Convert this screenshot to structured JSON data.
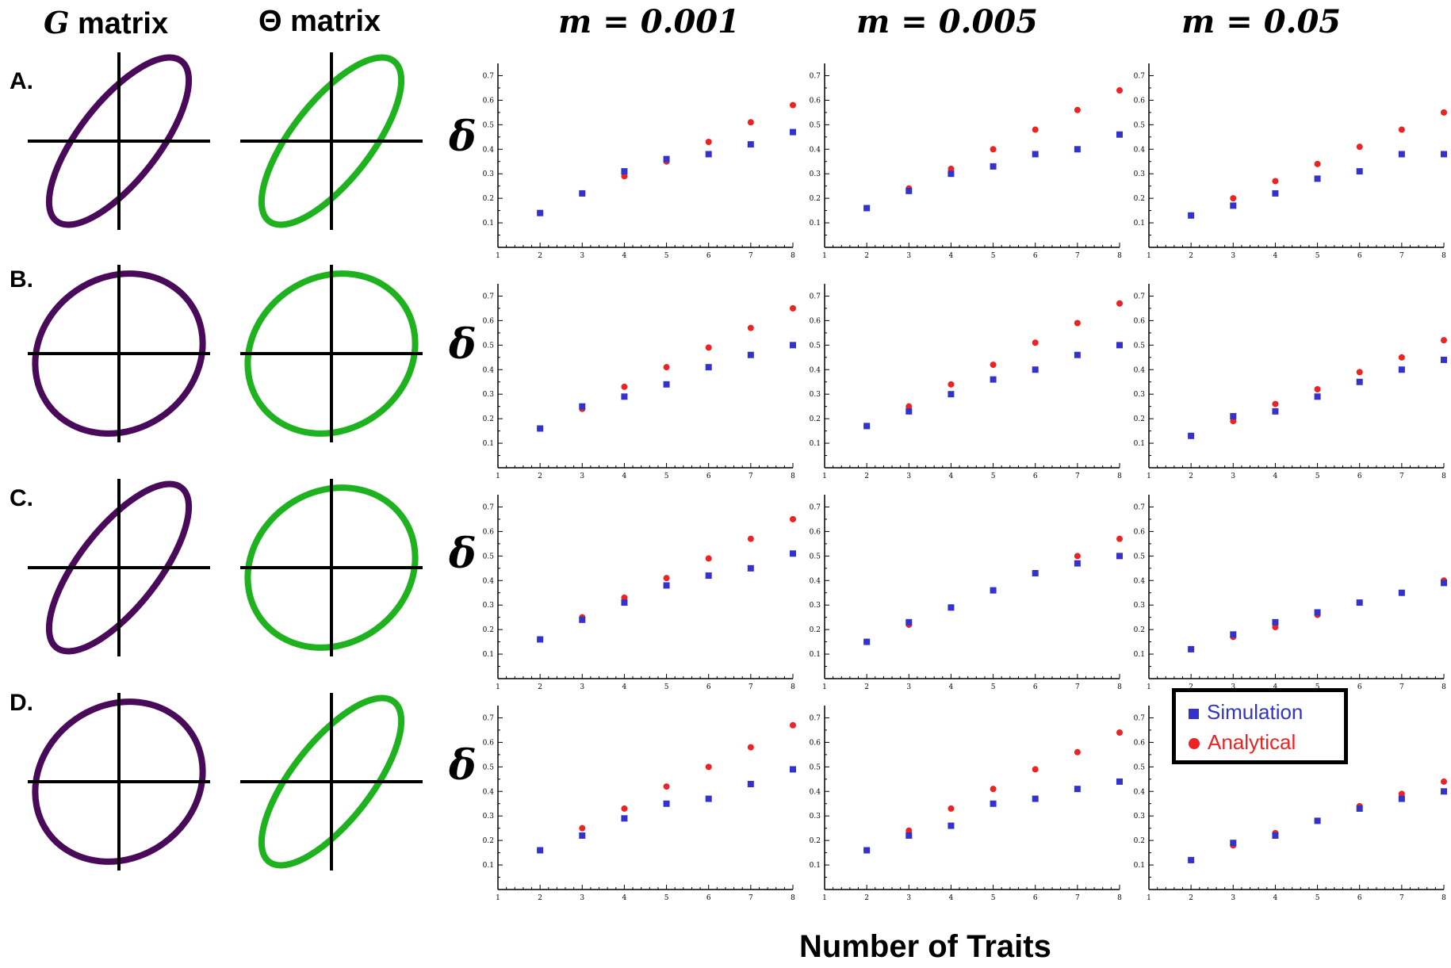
{
  "column_headers": {
    "g_matrix": {
      "symbol": "G",
      "text": "matrix"
    },
    "theta_matrix": {
      "symbol": "Θ",
      "text": "matrix"
    },
    "m_values": [
      "m = 0.001",
      "m = 0.005",
      "m = 0.05"
    ]
  },
  "row_labels": [
    "A.",
    "B.",
    "C.",
    "D."
  ],
  "y_label": "δ",
  "x_label": "Number of Traits",
  "legend": {
    "simulation": "Simulation",
    "analytical": "Analytical"
  },
  "colors": {
    "g_ellipse": "#4a0a5a",
    "theta_ellipse": "#1fb21f",
    "simulation": "#3333cc",
    "analytical": "#ee2222"
  },
  "ellipses": {
    "A": {
      "g": "tilted",
      "theta": "tilted"
    },
    "B": {
      "g": "round",
      "theta": "round"
    },
    "C": {
      "g": "tilted",
      "theta": "round"
    },
    "D": {
      "g": "round",
      "theta": "tilted"
    }
  },
  "chart_data": [
    {
      "row": "A",
      "m": "0.001",
      "type": "scatter",
      "x": [
        2,
        3,
        4,
        5,
        6,
        7,
        8
      ],
      "xlim": [
        1,
        8
      ],
      "ylim": [
        0,
        0.75
      ],
      "yticks": [
        0.1,
        0.2,
        0.3,
        0.4,
        0.5,
        0.6,
        0.7
      ],
      "series": [
        {
          "name": "Simulation",
          "values": [
            0.14,
            0.22,
            0.31,
            0.36,
            0.38,
            0.42,
            0.47
          ]
        },
        {
          "name": "Analytical",
          "values": [
            0.14,
            0.22,
            0.29,
            0.35,
            0.43,
            0.51,
            0.58
          ]
        }
      ]
    },
    {
      "row": "A",
      "m": "0.005",
      "type": "scatter",
      "x": [
        2,
        3,
        4,
        5,
        6,
        7,
        8
      ],
      "xlim": [
        1,
        8
      ],
      "ylim": [
        0,
        0.75
      ],
      "yticks": [
        0.1,
        0.2,
        0.3,
        0.4,
        0.5,
        0.6,
        0.7
      ],
      "series": [
        {
          "name": "Simulation",
          "values": [
            0.16,
            0.23,
            0.3,
            0.33,
            0.38,
            0.4,
            0.46
          ]
        },
        {
          "name": "Analytical",
          "values": [
            0.16,
            0.24,
            0.32,
            0.4,
            0.48,
            0.56,
            0.64
          ]
        }
      ]
    },
    {
      "row": "A",
      "m": "0.05",
      "type": "scatter",
      "x": [
        2,
        3,
        4,
        5,
        6,
        7,
        8
      ],
      "xlim": [
        1,
        8
      ],
      "ylim": [
        0,
        0.75
      ],
      "yticks": [
        0.1,
        0.2,
        0.3,
        0.4,
        0.5,
        0.6,
        0.7
      ],
      "series": [
        {
          "name": "Simulation",
          "values": [
            0.13,
            0.17,
            0.22,
            0.28,
            0.31,
            0.38,
            0.38
          ]
        },
        {
          "name": "Analytical",
          "values": [
            0.13,
            0.2,
            0.27,
            0.34,
            0.41,
            0.48,
            0.55
          ]
        }
      ]
    },
    {
      "row": "B",
      "m": "0.001",
      "type": "scatter",
      "x": [
        2,
        3,
        4,
        5,
        6,
        7,
        8
      ],
      "xlim": [
        1,
        8
      ],
      "ylim": [
        0,
        0.75
      ],
      "yticks": [
        0.1,
        0.2,
        0.3,
        0.4,
        0.5,
        0.6,
        0.7
      ],
      "series": [
        {
          "name": "Simulation",
          "values": [
            0.16,
            0.25,
            0.29,
            0.34,
            0.41,
            0.46,
            0.5
          ]
        },
        {
          "name": "Analytical",
          "values": [
            0.16,
            0.24,
            0.33,
            0.41,
            0.49,
            0.57,
            0.65
          ]
        }
      ]
    },
    {
      "row": "B",
      "m": "0.005",
      "type": "scatter",
      "x": [
        2,
        3,
        4,
        5,
        6,
        7,
        8
      ],
      "xlim": [
        1,
        8
      ],
      "ylim": [
        0,
        0.75
      ],
      "yticks": [
        0.1,
        0.2,
        0.3,
        0.4,
        0.5,
        0.6,
        0.7
      ],
      "series": [
        {
          "name": "Simulation",
          "values": [
            0.17,
            0.23,
            0.3,
            0.36,
            0.4,
            0.46,
            0.5
          ]
        },
        {
          "name": "Analytical",
          "values": [
            0.17,
            0.25,
            0.34,
            0.42,
            0.51,
            0.59,
            0.67
          ]
        }
      ]
    },
    {
      "row": "B",
      "m": "0.05",
      "type": "scatter",
      "x": [
        2,
        3,
        4,
        5,
        6,
        7,
        8
      ],
      "xlim": [
        1,
        8
      ],
      "ylim": [
        0,
        0.75
      ],
      "yticks": [
        0.1,
        0.2,
        0.3,
        0.4,
        0.5,
        0.6,
        0.7
      ],
      "series": [
        {
          "name": "Simulation",
          "values": [
            0.13,
            0.21,
            0.23,
            0.29,
            0.35,
            0.4,
            0.44
          ]
        },
        {
          "name": "Analytical",
          "values": [
            0.13,
            0.19,
            0.26,
            0.32,
            0.39,
            0.45,
            0.52
          ]
        }
      ]
    },
    {
      "row": "C",
      "m": "0.001",
      "type": "scatter",
      "x": [
        2,
        3,
        4,
        5,
        6,
        7,
        8
      ],
      "xlim": [
        1,
        8
      ],
      "ylim": [
        0,
        0.75
      ],
      "yticks": [
        0.1,
        0.2,
        0.3,
        0.4,
        0.5,
        0.6,
        0.7
      ],
      "series": [
        {
          "name": "Simulation",
          "values": [
            0.16,
            0.24,
            0.31,
            0.38,
            0.42,
            0.45,
            0.51
          ]
        },
        {
          "name": "Analytical",
          "values": [
            0.16,
            0.25,
            0.33,
            0.41,
            0.49,
            0.57,
            0.65
          ]
        }
      ]
    },
    {
      "row": "C",
      "m": "0.005",
      "type": "scatter",
      "x": [
        2,
        3,
        4,
        5,
        6,
        7,
        8
      ],
      "xlim": [
        1,
        8
      ],
      "ylim": [
        0,
        0.75
      ],
      "yticks": [
        0.1,
        0.2,
        0.3,
        0.4,
        0.5,
        0.6,
        0.7
      ],
      "series": [
        {
          "name": "Simulation",
          "values": [
            0.15,
            0.23,
            0.29,
            0.36,
            0.43,
            0.47,
            0.5
          ]
        },
        {
          "name": "Analytical",
          "values": [
            0.15,
            0.22,
            0.29,
            0.36,
            0.43,
            0.5,
            0.57
          ]
        }
      ]
    },
    {
      "row": "C",
      "m": "0.05",
      "type": "scatter",
      "x": [
        2,
        3,
        4,
        5,
        6,
        7,
        8
      ],
      "xlim": [
        1,
        8
      ],
      "ylim": [
        0,
        0.75
      ],
      "yticks": [
        0.1,
        0.2,
        0.3,
        0.4,
        0.5,
        0.6,
        0.7
      ],
      "series": [
        {
          "name": "Simulation",
          "values": [
            0.12,
            0.18,
            0.23,
            0.27,
            0.31,
            0.35,
            0.39
          ]
        },
        {
          "name": "Analytical",
          "values": [
            0.12,
            0.17,
            0.21,
            0.26,
            0.31,
            0.35,
            0.4
          ]
        }
      ]
    },
    {
      "row": "D",
      "m": "0.001",
      "type": "scatter",
      "x": [
        2,
        3,
        4,
        5,
        6,
        7,
        8
      ],
      "xlim": [
        1,
        8
      ],
      "ylim": [
        0,
        0.75
      ],
      "yticks": [
        0.1,
        0.2,
        0.3,
        0.4,
        0.5,
        0.6,
        0.7
      ],
      "series": [
        {
          "name": "Simulation",
          "values": [
            0.16,
            0.22,
            0.29,
            0.35,
            0.37,
            0.43,
            0.49
          ]
        },
        {
          "name": "Analytical",
          "values": [
            0.16,
            0.25,
            0.33,
            0.42,
            0.5,
            0.58,
            0.67
          ]
        }
      ]
    },
    {
      "row": "D",
      "m": "0.005",
      "type": "scatter",
      "x": [
        2,
        3,
        4,
        5,
        6,
        7,
        8
      ],
      "xlim": [
        1,
        8
      ],
      "ylim": [
        0,
        0.75
      ],
      "yticks": [
        0.1,
        0.2,
        0.3,
        0.4,
        0.5,
        0.6,
        0.7
      ],
      "series": [
        {
          "name": "Simulation",
          "values": [
            0.16,
            0.22,
            0.26,
            0.35,
            0.37,
            0.41,
            0.44
          ]
        },
        {
          "name": "Analytical",
          "values": [
            0.16,
            0.24,
            0.33,
            0.41,
            0.49,
            0.56,
            0.64
          ]
        }
      ]
    },
    {
      "row": "D",
      "m": "0.05",
      "type": "scatter",
      "x": [
        2,
        3,
        4,
        5,
        6,
        7,
        8
      ],
      "xlim": [
        1,
        8
      ],
      "ylim": [
        0,
        0.75
      ],
      "yticks": [
        0.1,
        0.2,
        0.3,
        0.4,
        0.5,
        0.6,
        0.7
      ],
      "series": [
        {
          "name": "Simulation",
          "values": [
            0.12,
            0.19,
            0.22,
            0.28,
            0.33,
            0.37,
            0.4
          ]
        },
        {
          "name": "Analytical",
          "values": [
            0.12,
            0.18,
            0.23,
            0.28,
            0.34,
            0.39,
            0.44
          ]
        }
      ]
    }
  ]
}
